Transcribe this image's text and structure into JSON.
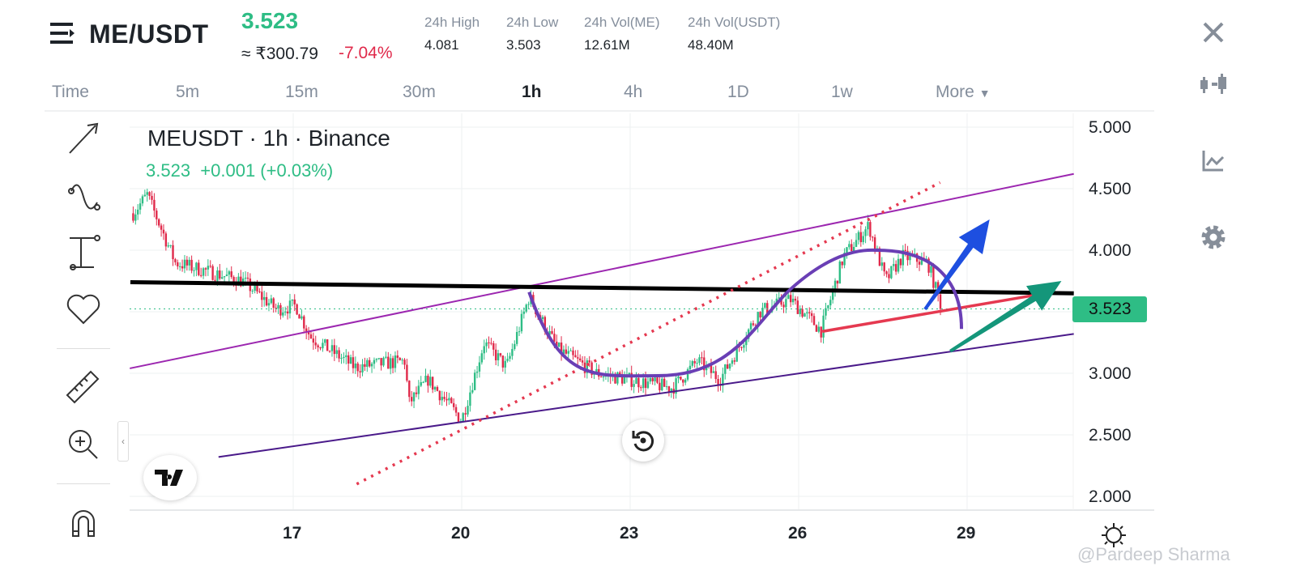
{
  "header": {
    "pair": "ME/USDT",
    "last_price": "3.523",
    "fiat_price": "≈ ₹300.79",
    "change_pct": "-7.04%",
    "stats": [
      {
        "label": "24h High",
        "value": "4.081"
      },
      {
        "label": "24h Low",
        "value": "3.503"
      },
      {
        "label": "24h Vol(ME)",
        "value": "12.61M"
      },
      {
        "label": "24h Vol(USDT)",
        "value": "48.40M"
      }
    ]
  },
  "timeframes": [
    "Time",
    "5m",
    "15m",
    "30m",
    "1h",
    "4h",
    "1D",
    "1w",
    "More"
  ],
  "active_timeframe": "1h",
  "legend": {
    "title": "MEUSDT · 1h · Binance",
    "value": "3.523",
    "change": "+0.001 (+0.03%)"
  },
  "watermark": "@Pardeep Sharma",
  "colors": {
    "up": "#2ebd85",
    "down": "#e0294a",
    "accent": "#2ebd85"
  },
  "left_tools": [
    "trend-arrow",
    "curve",
    "measure-bar",
    "favorites-heart",
    "ruler",
    "zoom-in",
    "magnet"
  ],
  "right_tools": [
    "close",
    "candle-type",
    "indicators",
    "settings"
  ],
  "chart_data": {
    "type": "candlestick",
    "title": "MEUSDT · 1h · Binance",
    "ylim": [
      1.9,
      5.1
    ],
    "y_ticks": [
      "5.000",
      "4.500",
      "4.000",
      "3.500",
      "3.000",
      "2.500",
      "2.000"
    ],
    "x_ticks": [
      "17",
      "20",
      "23",
      "26",
      "29"
    ],
    "x_tick_values": [
      17,
      20,
      23,
      26,
      29
    ],
    "xlim": [
      14.1,
      30.9
    ],
    "last_price": 3.523,
    "price_path": [
      [
        14.15,
        4.3
      ],
      [
        14.4,
        4.45
      ],
      [
        14.9,
        3.9
      ],
      [
        16.1,
        3.75
      ],
      [
        16.7,
        3.52
      ],
      [
        17.05,
        3.55
      ],
      [
        17.3,
        3.3
      ],
      [
        18.1,
        3.05
      ],
      [
        19.0,
        3.1
      ],
      [
        19.05,
        2.75
      ],
      [
        19.4,
        2.95
      ],
      [
        20.0,
        2.62
      ],
      [
        20.4,
        3.25
      ],
      [
        20.8,
        3.05
      ],
      [
        21.2,
        3.62
      ],
      [
        21.7,
        3.2
      ],
      [
        22.4,
        3.0
      ],
      [
        23.75,
        2.88
      ],
      [
        24.2,
        3.1
      ],
      [
        24.6,
        2.95
      ],
      [
        25.3,
        3.5
      ],
      [
        25.85,
        3.6
      ],
      [
        26.4,
        3.35
      ],
      [
        26.8,
        3.95
      ],
      [
        27.25,
        4.2
      ],
      [
        27.55,
        3.75
      ],
      [
        27.85,
        3.95
      ],
      [
        28.3,
        3.9
      ],
      [
        28.55,
        3.523
      ]
    ],
    "drawings": [
      {
        "kind": "line",
        "color": "#9c27b0",
        "points": [
          [
            14.09,
            3.04
          ],
          [
            30.9,
            4.62
          ]
        ]
      },
      {
        "kind": "line",
        "color": "#4a1a8a",
        "points": [
          [
            15.67,
            2.32
          ],
          [
            30.9,
            3.32
          ]
        ]
      },
      {
        "kind": "line",
        "color": "#000000",
        "points": [
          [
            14.1,
            3.74
          ],
          [
            30.9,
            3.65
          ]
        ]
      },
      {
        "kind": "line",
        "color": "#e53950",
        "points": [
          [
            26.42,
            3.34
          ],
          [
            30.4,
            3.65
          ]
        ]
      },
      {
        "kind": "dotted",
        "color": "#e53950",
        "points": [
          [
            18.13,
            2.1
          ],
          [
            28.52,
            4.55
          ]
        ]
      },
      {
        "kind": "arc",
        "color": "#6a3fb5",
        "points": [
          [
            21.2,
            3.66
          ],
          [
            23.5,
            2.98
          ],
          [
            25.8,
            3.66
          ],
          [
            27.4,
            4.0
          ],
          [
            28.9,
            3.36
          ]
        ]
      },
      {
        "kind": "arrow",
        "color": "#1e4fe0",
        "points": [
          [
            28.25,
            3.52
          ],
          [
            29.4,
            4.25
          ]
        ]
      },
      {
        "kind": "arrow",
        "color": "#14967a",
        "points": [
          [
            28.7,
            3.18
          ],
          [
            30.68,
            3.75
          ]
        ]
      }
    ]
  }
}
